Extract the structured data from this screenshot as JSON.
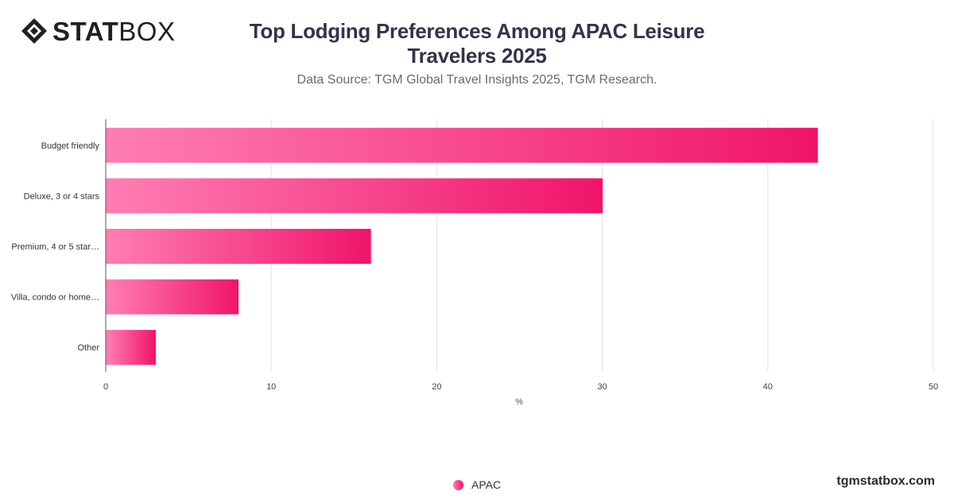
{
  "brand": {
    "logo_bold": "STAT",
    "logo_light": "BOX",
    "watermark": "tgmstatbox.com"
  },
  "colors": {
    "bar_start": "#ff7eb3",
    "bar_end": "#f0146a",
    "grid": "#e3e3e3",
    "axis": "#555555"
  },
  "chart_data": {
    "type": "bar",
    "orientation": "horizontal",
    "title": "Top Lodging Preferences Among APAC Leisure Travelers 2025",
    "subtitle": "Data Source: TGM Global Travel Insights 2025, TGM Research.",
    "categories": [
      "Budget friendly",
      "Deluxe, 3 or 4 stars",
      "Premium, 4 or 5 star…",
      "Villa, condo or home…",
      "Other"
    ],
    "series": [
      {
        "name": "APAC",
        "values": [
          43,
          30,
          16,
          8,
          3
        ]
      }
    ],
    "xlabel": "%",
    "ylabel": "",
    "xlim": [
      0,
      50
    ],
    "xticks": [
      0,
      10,
      20,
      30,
      40,
      50
    ],
    "grid": true,
    "legend": "bottom-center"
  }
}
